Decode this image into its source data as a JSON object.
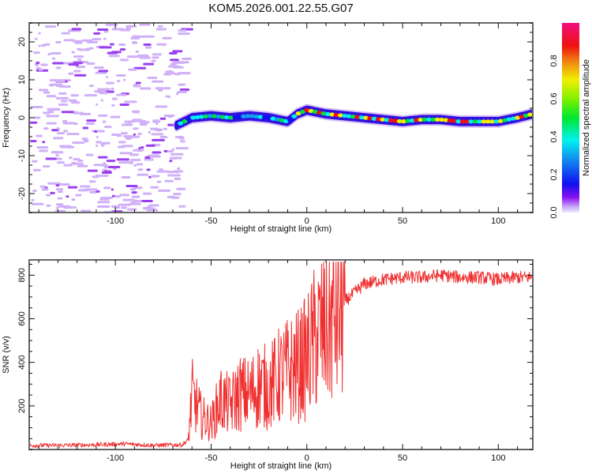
{
  "title": "KOM5.2026.001.22.55.G07",
  "chart_data": [
    {
      "type": "heatmap",
      "name": "spectrogram",
      "xlabel": "Height of straight line (km)",
      "ylabel": "Frequency (Hz)",
      "xlim": [
        -145,
        118
      ],
      "ylim": [
        -25,
        25
      ],
      "xticks": [
        -100,
        -50,
        0,
        50,
        100
      ],
      "yticks": [
        -20,
        -10,
        0,
        10,
        20
      ],
      "colorbar": {
        "label": "Normalized spectral amplitude",
        "range": [
          0.0,
          1.0
        ],
        "ticks": [
          0.0,
          0.2,
          0.4,
          0.6,
          0.8
        ],
        "colormap": [
          "#e8d8ff",
          "#8a00f0",
          "#1010f0",
          "#1090f0",
          "#00f0f0",
          "#00e040",
          "#80f000",
          "#f0f000",
          "#f08000",
          "#f01010",
          "#f01080"
        ]
      },
      "ridge": {
        "description": "Dominant frequency track; noise region below -65 km",
        "x": [
          -68,
          -60,
          -50,
          -40,
          -30,
          -20,
          -10,
          -5,
          0,
          10,
          20,
          30,
          40,
          50,
          60,
          70,
          80,
          90,
          100,
          110,
          118
        ],
        "y": [
          -2,
          0,
          0.5,
          0,
          0.5,
          0,
          -1,
          1,
          2,
          1,
          0.5,
          0,
          -0.5,
          -1,
          -0.5,
          -0.5,
          -1,
          -1,
          -1,
          0,
          1
        ]
      }
    },
    {
      "type": "line",
      "name": "snr",
      "xlabel": "Height of straight line (km)",
      "ylabel": "SNR (v/v)",
      "xlim": [
        -145,
        118
      ],
      "ylim": [
        0,
        870
      ],
      "xticks": [
        -100,
        -50,
        0,
        50,
        100
      ],
      "yticks": [
        200,
        400,
        600,
        800
      ],
      "color": "#f03030",
      "series": [
        {
          "name": "SNR",
          "x": [
            -145,
            -130,
            -110,
            -95,
            -80,
            -65,
            -62,
            -60,
            -55,
            -50,
            -45,
            -40,
            -35,
            -30,
            -25,
            -20,
            -15,
            -10,
            -5,
            0,
            5,
            10,
            15,
            20,
            25,
            30,
            40,
            50,
            60,
            70,
            80,
            90,
            100,
            110,
            118
          ],
          "y": [
            15,
            15,
            18,
            22,
            15,
            18,
            40,
            250,
            150,
            120,
            230,
            200,
            260,
            250,
            300,
            280,
            330,
            360,
            380,
            420,
            520,
            560,
            620,
            680,
            720,
            760,
            780,
            790,
            790,
            800,
            790,
            790,
            780,
            790,
            790
          ]
        }
      ]
    }
  ]
}
